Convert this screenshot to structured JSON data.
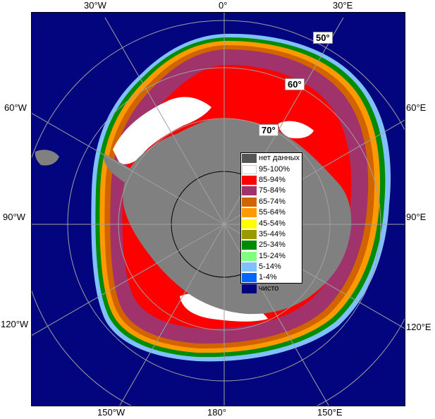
{
  "colors": {
    "ocean": "#03057e",
    "land": "#808080",
    "no_data": "#555555",
    "grid": "#a0a0a0",
    "circle": "#000000"
  },
  "labels": {
    "top": {
      "w30": "30°W",
      "zero": "0°",
      "e30": "30°E"
    },
    "left": {
      "w60": "60°W",
      "w90": "90°W",
      "w120": "120°W"
    },
    "right": {
      "e60": "60°E",
      "e90": "90°E",
      "e120": "120°E"
    },
    "bottom": {
      "w150": "150°W",
      "lon180": "180°",
      "e150": "150°E"
    },
    "lat": {
      "l50": "50°",
      "l60": "60°",
      "l70": "70°"
    }
  },
  "legend": {
    "items": [
      {
        "label": "нет данных",
        "color": "#555555"
      },
      {
        "label": "95-100%",
        "color": "#ffffff"
      },
      {
        "label": "85-94%",
        "color": "#ff0000"
      },
      {
        "label": "75-84%",
        "color": "#a0336c"
      },
      {
        "label": "65-74%",
        "color": "#d26400"
      },
      {
        "label": "55-64%",
        "color": "#ff9900"
      },
      {
        "label": "45-54%",
        "color": "#ffff00"
      },
      {
        "label": "35-44%",
        "color": "#999900"
      },
      {
        "label": "25-34%",
        "color": "#008c00"
      },
      {
        "label": "15-24%",
        "color": "#80ff80"
      },
      {
        "label": "5-14%",
        "color": "#80c0ff"
      },
      {
        "label": "1-4%",
        "color": "#0066ff"
      },
      {
        "label": "чисто",
        "color": "#000080"
      }
    ]
  }
}
